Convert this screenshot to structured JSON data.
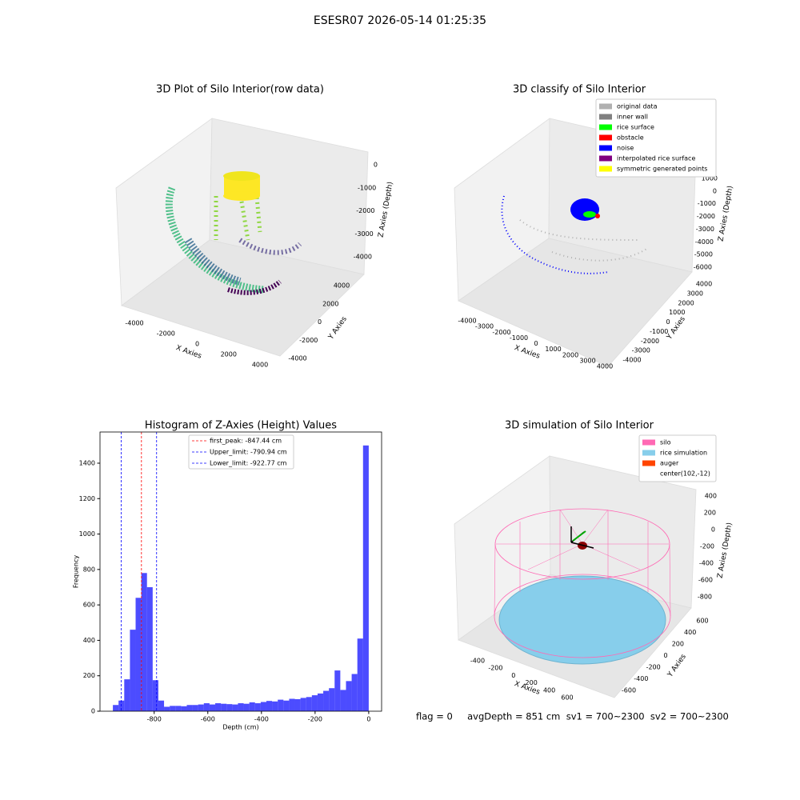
{
  "figure_title": "ESESR07 2026-05-14 01:25:35",
  "chart_data": [
    {
      "type": "scatter3d",
      "title": "3D Plot of Silo Interior(row data)",
      "xlabel": "X Axies",
      "ylabel": "Y Axies",
      "zlabel": "Z Axies (Depth)",
      "xticks": [
        -4000,
        -2000,
        0,
        2000,
        4000
      ],
      "yticks": [
        -4000,
        -2000,
        0,
        2000,
        4000
      ],
      "zticks": [
        0,
        -1000,
        -2000,
        -3000,
        -4000
      ]
    },
    {
      "type": "scatter3d",
      "title": "3D classify of Silo Interior",
      "xlabel": "X Axies",
      "ylabel": "Y Axies",
      "zlabel": "Z Axies (Depth)",
      "xticks": [
        -4000,
        -3000,
        -2000,
        -1000,
        0,
        1000,
        2000,
        3000,
        4000
      ],
      "yticks": [
        -4000,
        -3000,
        -2000,
        -1000,
        0,
        1000,
        2000,
        3000,
        4000
      ],
      "zticks": [
        1000,
        0,
        -1000,
        -2000,
        -3000,
        -4000,
        -5000,
        -6000
      ],
      "legend_entries": [
        {
          "name": "original data",
          "color": "#b0b0b0"
        },
        {
          "name": "inner wall",
          "color": "#808080"
        },
        {
          "name": "rice surface",
          "color": "#00ff00"
        },
        {
          "name": "obstacle",
          "color": "#ff0000"
        },
        {
          "name": "noise",
          "color": "#0000ff"
        },
        {
          "name": "interpolated rice surface",
          "color": "#800080"
        },
        {
          "name": "symmetric generated points",
          "color": "#ffff00"
        }
      ]
    },
    {
      "type": "histogram",
      "title": "Histogram of Z-Axies (Height) Values",
      "xlabel": "Depth (cm)",
      "ylabel": "Frequency",
      "color": "#0000ff",
      "bins": [
        -954,
        -932.8,
        -911.6,
        -890.4,
        -869.2,
        -848,
        -826.8,
        -805.6,
        -784.4,
        -763.2,
        -742,
        -720.8,
        -699.6,
        -678.4,
        -657.2,
        -636,
        -614.8,
        -593.6,
        -572.4,
        -551.2,
        -530,
        -508.8,
        -487.6,
        -466.4,
        -445.2,
        -424,
        -402.8,
        -381.6,
        -360.4,
        -339.2,
        -318,
        -296.8,
        -275.6,
        -254.4,
        -233.2,
        -212,
        -190.8,
        -169.6,
        -148.4,
        -127.2,
        -106,
        -84.8,
        -63.6,
        -42.4,
        -21.2,
        0
      ],
      "counts": [
        35,
        60,
        180,
        460,
        640,
        780,
        700,
        175,
        60,
        25,
        30,
        30,
        28,
        35,
        35,
        38,
        45,
        38,
        45,
        42,
        40,
        38,
        45,
        42,
        50,
        45,
        52,
        58,
        55,
        65,
        60,
        70,
        68,
        75,
        80,
        90,
        100,
        115,
        130,
        230,
        120,
        170,
        210,
        410,
        1500
      ],
      "xlim": [
        -1002,
        48
      ],
      "ylim": [
        0,
        1576
      ],
      "xticks": [
        -800,
        -600,
        -400,
        -200,
        0
      ],
      "yticks": [
        0,
        200,
        400,
        600,
        800,
        1000,
        1200,
        1400
      ],
      "vlines": [
        {
          "label": "first_peak: -847.44 cm",
          "value": -847.44,
          "color": "#ff0000"
        },
        {
          "label": "Upper_limit: -790.94 cm",
          "value": -790.94,
          "color": "#0000ff"
        },
        {
          "label": "Lower_limit: -922.77 cm",
          "value": -922.77,
          "color": "#0000ff"
        }
      ]
    },
    {
      "type": "surface3d",
      "title": "3D simulation of Silo Interior",
      "xlabel": "X Axies",
      "ylabel": "Y Axies",
      "zlabel": "Z Axies (Depth)",
      "xticks": [
        -400,
        -200,
        0,
        200,
        400,
        600
      ],
      "yticks": [
        -600,
        -400,
        -200,
        0,
        200,
        400,
        600
      ],
      "zticks": [
        400,
        200,
        0,
        -200,
        -400,
        -600,
        -800
      ],
      "legend_entries": [
        {
          "name": "silo",
          "color": "#ff69b4"
        },
        {
          "name": "rice simulation",
          "color": "#87ceeb"
        },
        {
          "name": "auger",
          "color": "#ff4500"
        },
        {
          "name": "center(102,-12)"
        }
      ]
    }
  ],
  "footer": "flag = 0     avgDepth = 851 cm  sv1 = 700~2300  sv2 = 700~2300"
}
